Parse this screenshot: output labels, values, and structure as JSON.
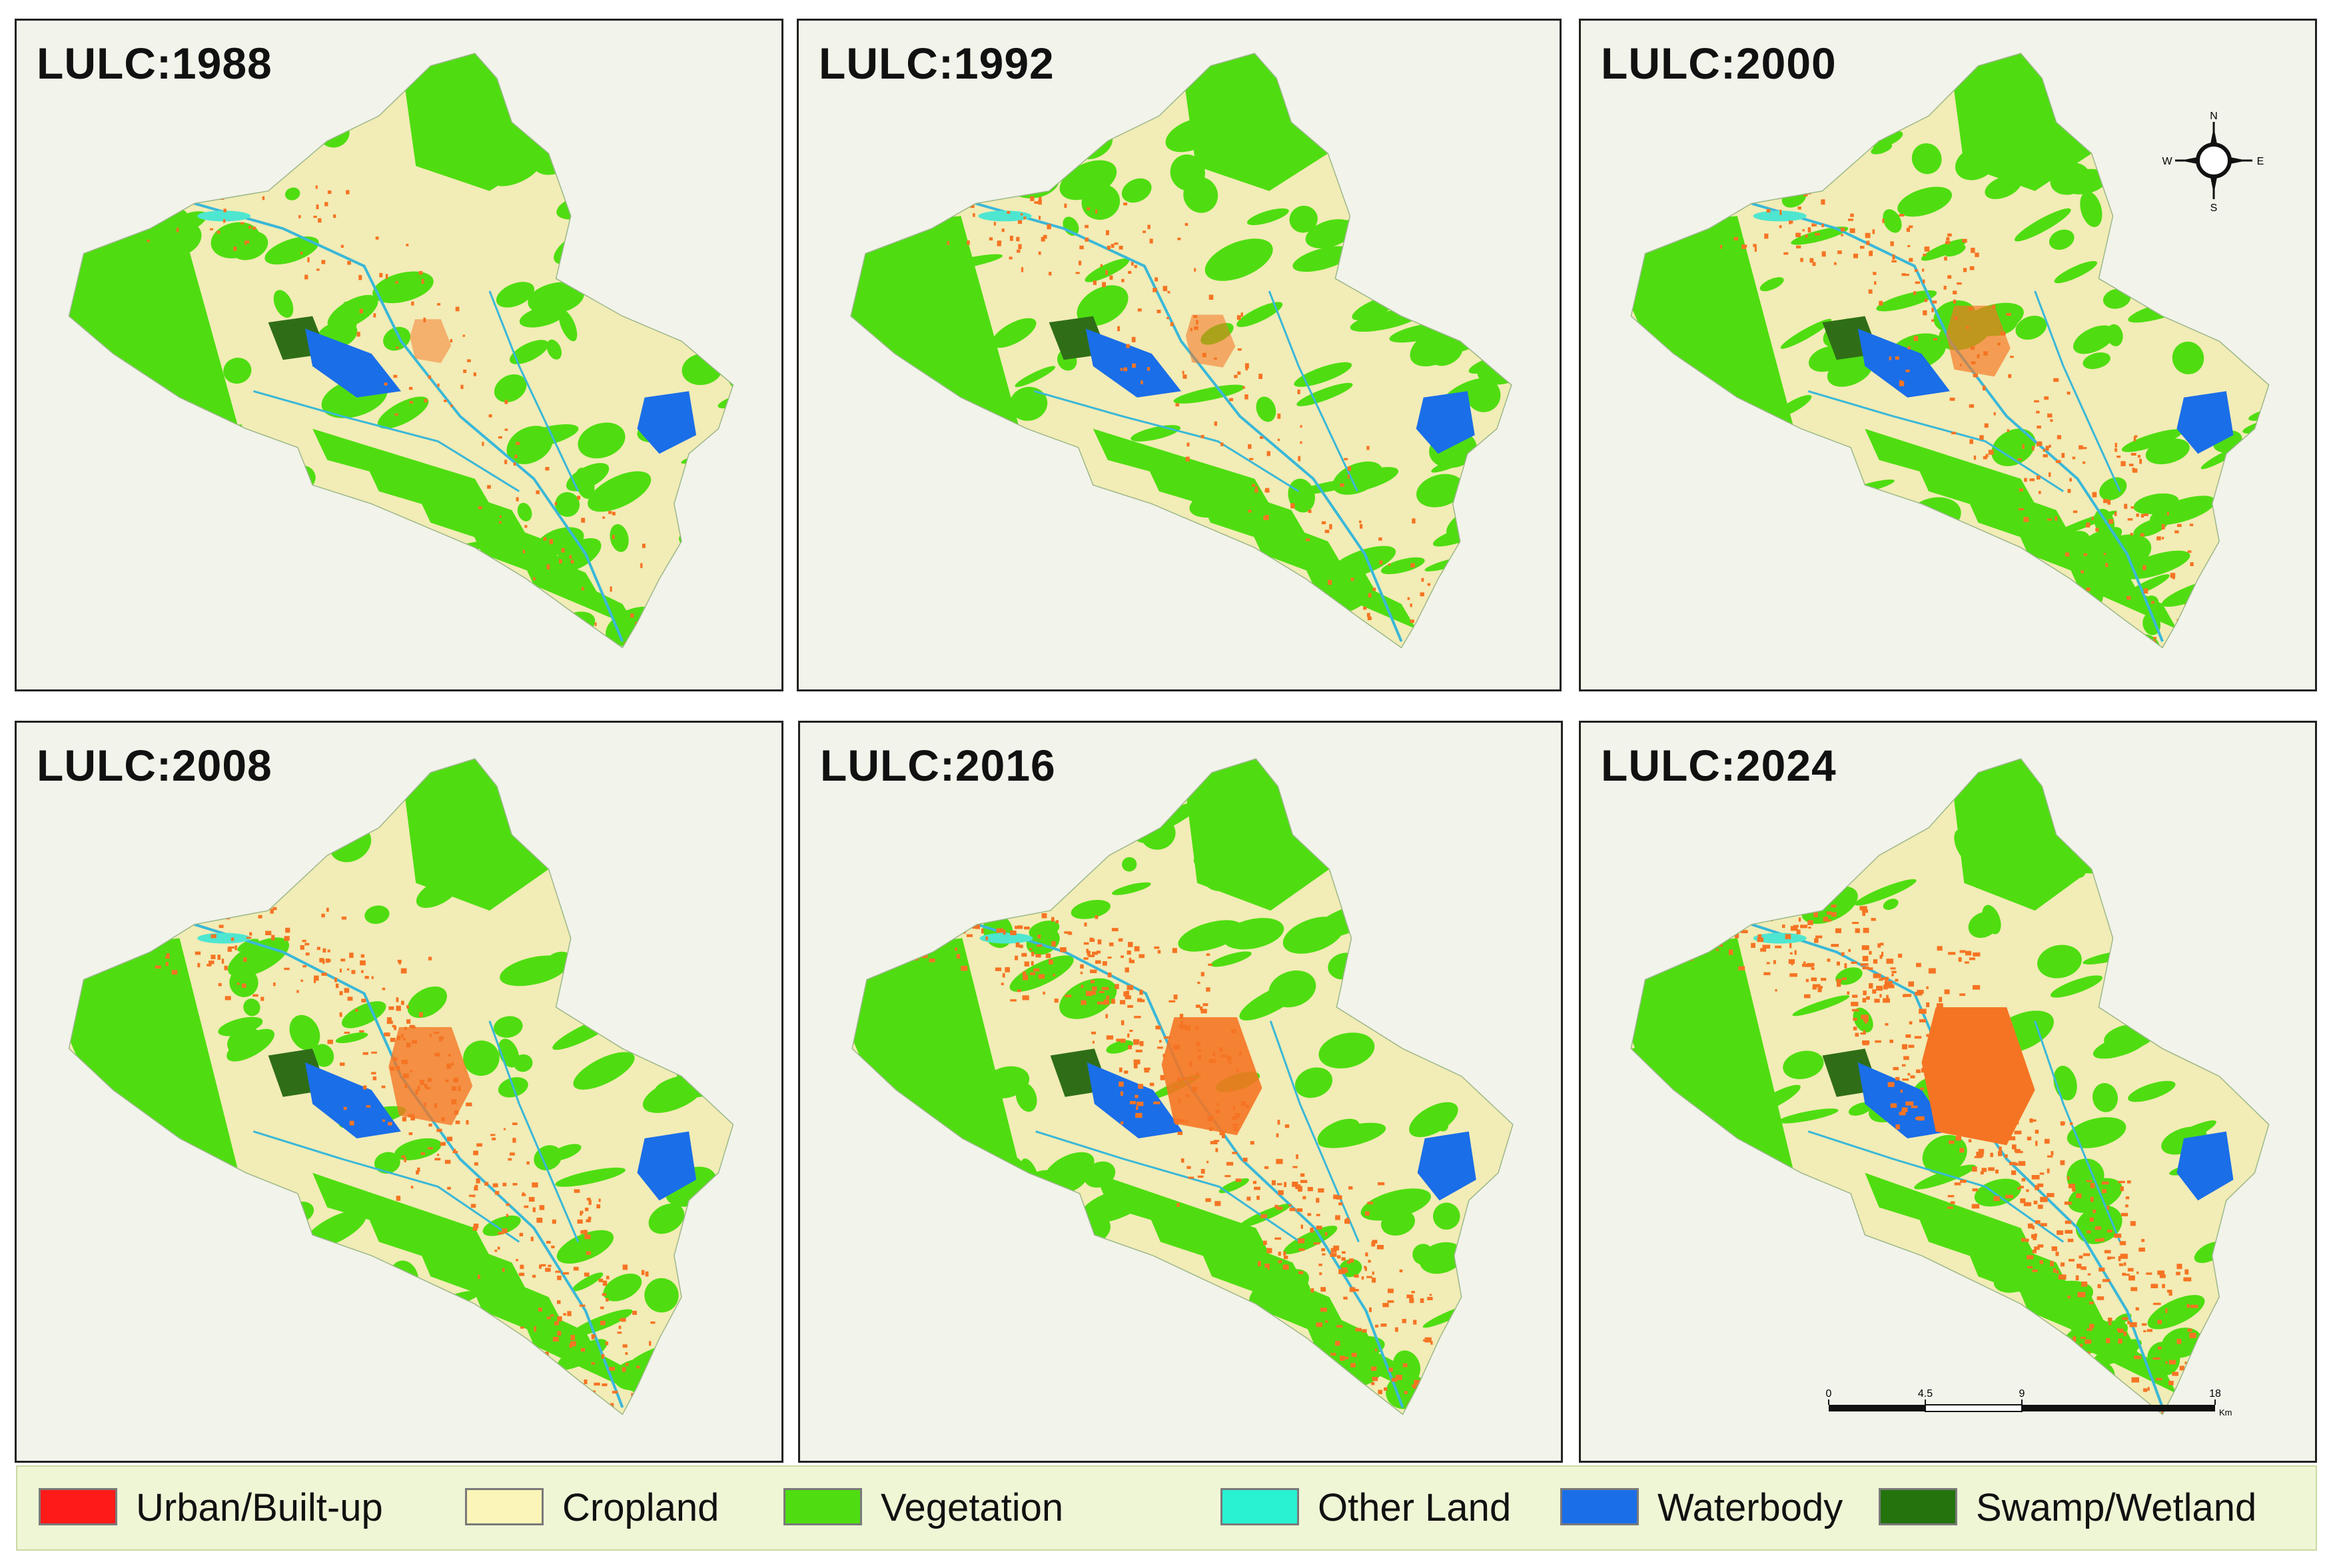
{
  "panels": [
    {
      "title": "LULC:1988",
      "year": 1988
    },
    {
      "title": "LULC:1992",
      "year": 1992
    },
    {
      "title": "LULC:2000",
      "year": 2000
    },
    {
      "title": "LULC:2008",
      "year": 2008
    },
    {
      "title": "LULC:2016",
      "year": 2016
    },
    {
      "title": "LULC:2024",
      "year": 2024
    }
  ],
  "legend": [
    {
      "label": "Urban/Built-up",
      "color": "#ff1a1a"
    },
    {
      "label": "Cropland",
      "color": "#fcf5b8"
    },
    {
      "label": "Vegetation",
      "color": "#4fdd11"
    },
    {
      "label": "Other Land",
      "color": "#28f2d2"
    },
    {
      "label": "Waterbody",
      "color": "#1a6ee8"
    },
    {
      "label": "Swamp/Wetland",
      "color": "#24740e"
    }
  ],
  "north_arrow": {
    "n": "N",
    "s": "S",
    "e": "E",
    "w": "W"
  },
  "scale_bar": {
    "ticks": [
      "0",
      "4.5",
      "9",
      "18"
    ],
    "unit": "Km"
  },
  "map_colors": {
    "background": "#f2f3ea",
    "urban": "#f57423",
    "cropland": "#f2ecb6",
    "vegetation": "#4fdd11",
    "other_land": "#4ee6d0",
    "water": "#1a6ee8",
    "wetland": "#2f6e17",
    "river": "#3ab8d8"
  }
}
